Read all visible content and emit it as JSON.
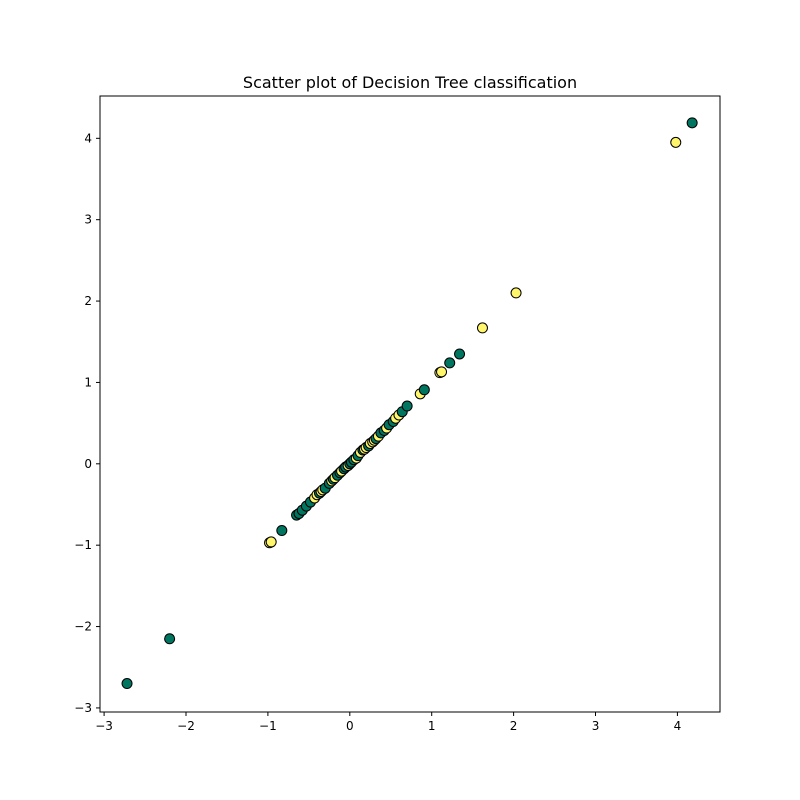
{
  "chart_data": {
    "type": "scatter",
    "title": "Scatter plot of Decision Tree classification",
    "xlabel": "",
    "ylabel": "",
    "xlim": [
      -3.05,
      4.52
    ],
    "ylim": [
      -3.05,
      4.52
    ],
    "xticks": [
      -3,
      -2,
      -1,
      0,
      1,
      2,
      3,
      4
    ],
    "yticks": [
      -3,
      -2,
      -1,
      0,
      1,
      2,
      3,
      4
    ],
    "xtick_labels": [
      "−3",
      "−2",
      "−1",
      "0",
      "1",
      "2",
      "3",
      "4"
    ],
    "ytick_labels": [
      "−3",
      "−2",
      "−1",
      "0",
      "1",
      "2",
      "3",
      "4"
    ],
    "grid": false,
    "marker_edge_color": "#000000",
    "class_colors": {
      "0": "#00755f",
      "1": "#fff66c"
    },
    "points": [
      {
        "x": -2.72,
        "y": -2.7,
        "c": 0
      },
      {
        "x": -2.2,
        "y": -2.15,
        "c": 0
      },
      {
        "x": -0.98,
        "y": -0.97,
        "c": 1
      },
      {
        "x": -0.96,
        "y": -0.96,
        "c": 1
      },
      {
        "x": -0.83,
        "y": -0.82,
        "c": 0
      },
      {
        "x": -0.65,
        "y": -0.63,
        "c": 0
      },
      {
        "x": -0.62,
        "y": -0.61,
        "c": 0
      },
      {
        "x": -0.58,
        "y": -0.57,
        "c": 0
      },
      {
        "x": -0.53,
        "y": -0.52,
        "c": 0
      },
      {
        "x": -0.48,
        "y": -0.47,
        "c": 0
      },
      {
        "x": -0.43,
        "y": -0.42,
        "c": 1
      },
      {
        "x": -0.4,
        "y": -0.38,
        "c": 1
      },
      {
        "x": -0.37,
        "y": -0.36,
        "c": 0
      },
      {
        "x": -0.35,
        "y": -0.34,
        "c": 1
      },
      {
        "x": -0.33,
        "y": -0.32,
        "c": 1
      },
      {
        "x": -0.3,
        "y": -0.3,
        "c": 0
      },
      {
        "x": -0.25,
        "y": -0.24,
        "c": 0
      },
      {
        "x": -0.22,
        "y": -0.21,
        "c": 1
      },
      {
        "x": -0.2,
        "y": -0.19,
        "c": 0
      },
      {
        "x": -0.18,
        "y": -0.17,
        "c": 1
      },
      {
        "x": -0.15,
        "y": -0.14,
        "c": 0
      },
      {
        "x": -0.12,
        "y": -0.11,
        "c": 0
      },
      {
        "x": -0.1,
        "y": -0.09,
        "c": 1
      },
      {
        "x": -0.07,
        "y": -0.06,
        "c": 0
      },
      {
        "x": -0.05,
        "y": -0.04,
        "c": 0
      },
      {
        "x": -0.02,
        "y": -0.02,
        "c": 1
      },
      {
        "x": 0.0,
        "y": 0.0,
        "c": 0
      },
      {
        "x": 0.02,
        "y": 0.02,
        "c": 0
      },
      {
        "x": 0.05,
        "y": 0.05,
        "c": 0
      },
      {
        "x": 0.08,
        "y": 0.07,
        "c": 1
      },
      {
        "x": 0.1,
        "y": 0.1,
        "c": 0
      },
      {
        "x": 0.13,
        "y": 0.14,
        "c": 1
      },
      {
        "x": 0.16,
        "y": 0.17,
        "c": 0
      },
      {
        "x": 0.18,
        "y": 0.18,
        "c": 1
      },
      {
        "x": 0.2,
        "y": 0.2,
        "c": 1
      },
      {
        "x": 0.23,
        "y": 0.22,
        "c": 0
      },
      {
        "x": 0.25,
        "y": 0.25,
        "c": 1
      },
      {
        "x": 0.28,
        "y": 0.27,
        "c": 1
      },
      {
        "x": 0.3,
        "y": 0.29,
        "c": 1
      },
      {
        "x": 0.32,
        "y": 0.31,
        "c": 0
      },
      {
        "x": 0.35,
        "y": 0.34,
        "c": 1
      },
      {
        "x": 0.38,
        "y": 0.38,
        "c": 0
      },
      {
        "x": 0.42,
        "y": 0.41,
        "c": 0
      },
      {
        "x": 0.45,
        "y": 0.44,
        "c": 1
      },
      {
        "x": 0.48,
        "y": 0.48,
        "c": 0
      },
      {
        "x": 0.53,
        "y": 0.52,
        "c": 0
      },
      {
        "x": 0.56,
        "y": 0.56,
        "c": 1
      },
      {
        "x": 0.6,
        "y": 0.6,
        "c": 1
      },
      {
        "x": 0.64,
        "y": 0.64,
        "c": 0
      },
      {
        "x": 0.7,
        "y": 0.71,
        "c": 0
      },
      {
        "x": 0.86,
        "y": 0.86,
        "c": 1
      },
      {
        "x": 0.91,
        "y": 0.91,
        "c": 0
      },
      {
        "x": 1.1,
        "y": 1.12,
        "c": 1
      },
      {
        "x": 1.12,
        "y": 1.13,
        "c": 1
      },
      {
        "x": 1.22,
        "y": 1.24,
        "c": 0
      },
      {
        "x": 1.34,
        "y": 1.35,
        "c": 0
      },
      {
        "x": 1.62,
        "y": 1.67,
        "c": 1
      },
      {
        "x": 2.03,
        "y": 2.1,
        "c": 1
      },
      {
        "x": 3.98,
        "y": 3.95,
        "c": 1
      },
      {
        "x": 4.18,
        "y": 4.19,
        "c": 0
      }
    ]
  }
}
